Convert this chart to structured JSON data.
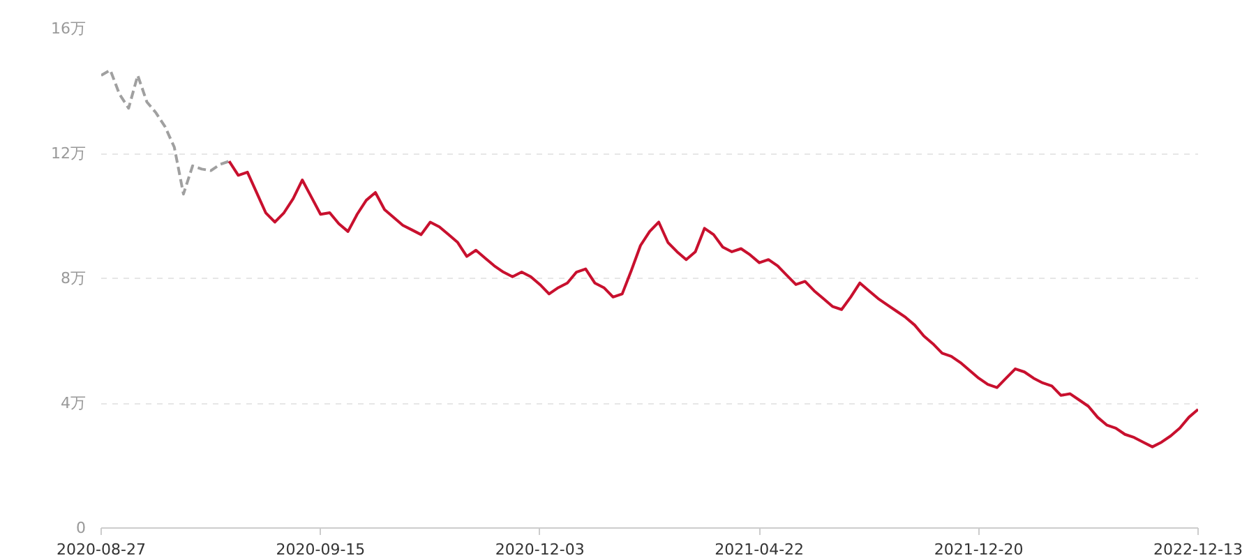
{
  "chart_data": {
    "type": "line",
    "categories": [
      "2020-08-27",
      null,
      null,
      null,
      null,
      null,
      null,
      null,
      null,
      null,
      null,
      null,
      null,
      null,
      null,
      null,
      null,
      null,
      null,
      null,
      null,
      null,
      null,
      null,
      "2020-09-15",
      null,
      null,
      null,
      null,
      null,
      null,
      null,
      null,
      null,
      null,
      null,
      null,
      null,
      null,
      null,
      null,
      null,
      null,
      null,
      null,
      null,
      null,
      null,
      "2020-12-03",
      null,
      null,
      null,
      null,
      null,
      null,
      null,
      null,
      null,
      null,
      null,
      null,
      null,
      null,
      null,
      null,
      null,
      null,
      null,
      null,
      null,
      null,
      null,
      "2021-04-22",
      null,
      null,
      null,
      null,
      null,
      null,
      null,
      null,
      null,
      null,
      null,
      null,
      null,
      null,
      null,
      null,
      null,
      null,
      null,
      null,
      null,
      null,
      null,
      "2021-12-20",
      null,
      null,
      null,
      null,
      null,
      null,
      null,
      null,
      null,
      null,
      null,
      null,
      null,
      null,
      null,
      null,
      null,
      null,
      null,
      null,
      null,
      null,
      null,
      "2022-12-13"
    ],
    "series": [
      {
        "color": "#a0a0a0",
        "line_style": "dashed",
        "values": [
          14.5,
          14.67,
          13.9,
          13.45,
          14.5,
          13.65,
          13.3,
          12.85,
          12.2,
          10.7,
          11.6,
          11.5,
          11.45,
          11.65,
          11.75,
          null,
          null,
          null,
          null,
          null,
          null,
          null,
          null,
          null,
          null,
          null,
          null,
          null,
          null,
          null,
          null,
          null,
          null,
          null,
          null,
          null,
          null,
          null,
          null,
          null,
          null,
          null,
          null,
          null,
          null,
          null,
          null,
          null,
          null,
          null,
          null,
          null,
          null,
          null,
          null,
          null,
          null,
          null,
          null,
          null,
          null,
          null,
          null,
          null,
          null,
          null,
          null,
          null,
          null,
          null,
          null,
          null,
          null,
          null,
          null,
          null,
          null,
          null,
          null,
          null,
          null,
          null,
          null,
          null,
          null,
          null,
          null,
          null,
          null,
          null,
          null,
          null,
          null,
          null,
          null,
          null,
          null,
          null,
          null,
          null,
          null,
          null,
          null,
          null,
          null,
          null,
          null,
          null,
          null,
          null,
          null,
          null,
          null,
          null,
          null,
          null,
          null,
          null,
          null,
          null,
          null
        ]
      },
      {
        "color": "#c8102e",
        "line_style": "solid",
        "values": [
          null,
          null,
          null,
          null,
          null,
          null,
          null,
          null,
          null,
          null,
          null,
          null,
          null,
          null,
          11.75,
          11.3,
          11.4,
          10.75,
          10.1,
          9.8,
          10.1,
          10.55,
          11.15,
          10.6,
          10.05,
          10.1,
          9.75,
          9.5,
          10.05,
          10.5,
          10.75,
          10.2,
          9.95,
          9.7,
          9.55,
          9.4,
          9.8,
          9.65,
          9.4,
          9.15,
          8.7,
          8.9,
          8.65,
          8.4,
          8.2,
          8.05,
          8.2,
          8.05,
          7.8,
          7.5,
          7.7,
          7.85,
          8.2,
          8.3,
          7.85,
          7.7,
          7.4,
          7.5,
          8.25,
          9.05,
          9.5,
          9.8,
          9.15,
          8.85,
          8.6,
          8.85,
          9.6,
          9.4,
          9.0,
          8.85,
          8.95,
          8.75,
          8.5,
          8.6,
          8.4,
          8.1,
          7.8,
          7.9,
          7.6,
          7.35,
          7.1,
          7.0,
          7.4,
          7.85,
          7.6,
          7.35,
          7.15,
          6.95,
          6.75,
          6.5,
          6.15,
          5.9,
          5.6,
          5.5,
          5.3,
          5.05,
          4.8,
          4.6,
          4.5,
          4.8,
          5.1,
          5.0,
          4.8,
          4.65,
          4.55,
          4.25,
          4.3,
          4.1,
          3.9,
          3.55,
          3.3,
          3.2,
          3.0,
          2.9,
          2.75,
          2.6,
          2.75,
          2.95,
          3.2,
          3.55,
          3.8
        ]
      }
    ],
    "ylim": [
      0,
      16
    ],
    "yticks": [
      {
        "value": 0,
        "label": "0"
      },
      {
        "value": 4,
        "label": "4万"
      },
      {
        "value": 8,
        "label": "8万"
      },
      {
        "value": 12,
        "label": "12万"
      },
      {
        "value": 16,
        "label": "16万"
      }
    ],
    "grid": "y",
    "marker": "none"
  }
}
